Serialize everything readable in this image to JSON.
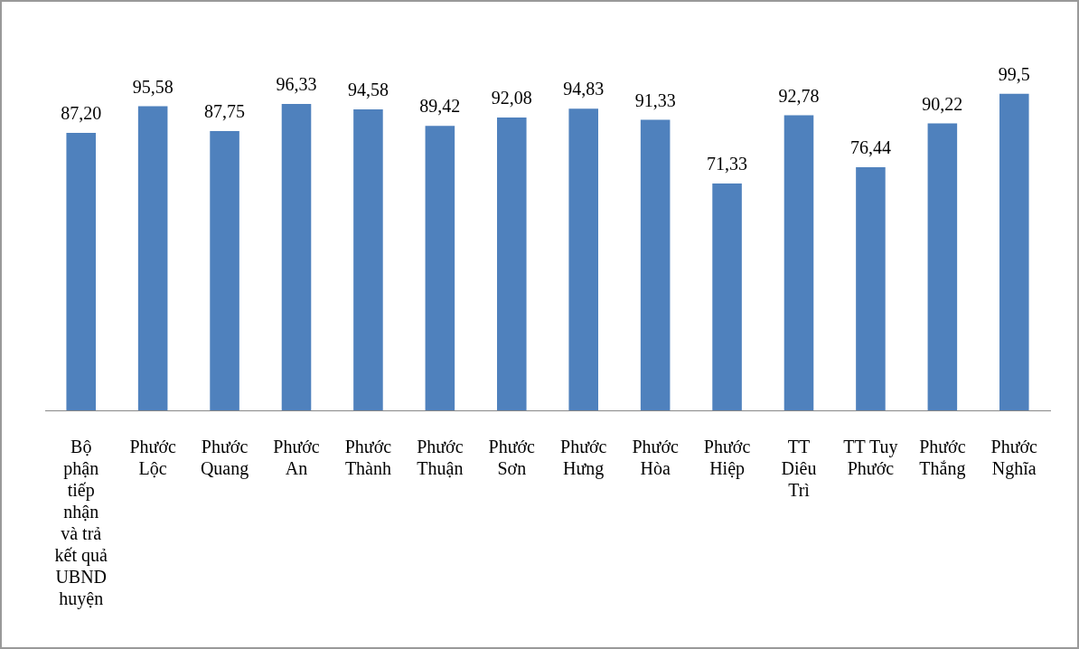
{
  "chart_data": {
    "type": "bar",
    "categories": [
      "Bộ phận tiếp nhận và trả kết quả UBND huyện",
      "Phước Lộc",
      "Phước Quang",
      "Phước An",
      "Phước Thành",
      "Phước Thuận",
      "Phước Sơn",
      "Phước Hưng",
      "Phước Hòa",
      "Phước Hiệp",
      "TT Diêu Trì",
      "TT Tuy Phước",
      "Phước Thắng",
      "Phước Nghĩa"
    ],
    "values": [
      87.2,
      95.58,
      87.75,
      96.33,
      94.58,
      89.42,
      92.08,
      94.83,
      91.33,
      71.33,
      92.78,
      76.44,
      90.22,
      99.5
    ],
    "value_labels": [
      "87,20",
      "95,58",
      "87,75",
      "96,33",
      "94,58",
      "89,42",
      "92,08",
      "94,83",
      "91,33",
      "71,33",
      "92,78",
      "76,44",
      "90,22",
      "99,5"
    ],
    "color": "#4f81bd",
    "grid": false,
    "legend": false
  }
}
